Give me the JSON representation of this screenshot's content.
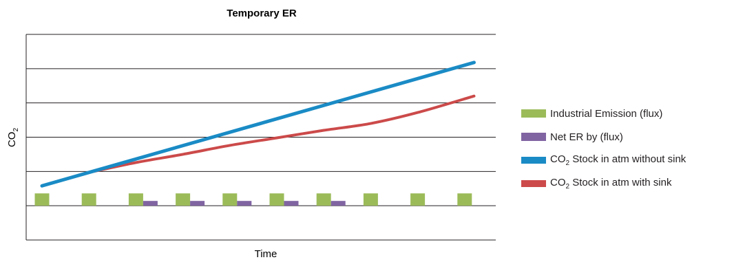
{
  "chart_data": {
    "type": "bar",
    "title": "Temporary ER",
    "xlabel": "Time",
    "ylabel": "CO2",
    "ylabel_main": "CO",
    "ylabel_sub": "2",
    "grid": true,
    "legend_position": "right",
    "x": [
      1,
      2,
      3,
      4,
      5,
      6,
      7,
      8,
      9,
      10
    ],
    "ylim": [
      -1,
      5
    ],
    "series": [
      {
        "name": "Industrial Emission (flux)",
        "type": "bar",
        "color": "#9bbb59",
        "values": [
          0.36,
          0.36,
          0.36,
          0.36,
          0.36,
          0.36,
          0.36,
          0.36,
          0.36,
          0.36
        ]
      },
      {
        "name": "Net ER by (flux)",
        "type": "bar",
        "color": "#8064a2",
        "values": [
          0,
          0,
          0.14,
          0.14,
          0.14,
          0.14,
          0.14,
          0,
          0,
          0
        ]
      },
      {
        "name": "CO2 Stock in atm without sink",
        "type": "line",
        "color": "#1a8bc5",
        "x": [
          1,
          10.2
        ],
        "values": [
          0.58,
          4.18
        ]
      },
      {
        "name": "CO2 Stock in atm with sink",
        "type": "line",
        "color": "#cc4a4a",
        "x": [
          2.1,
          3,
          4,
          5,
          6,
          7,
          8,
          9,
          10.2
        ],
        "values": [
          1.0,
          1.26,
          1.5,
          1.76,
          1.98,
          2.2,
          2.4,
          2.72,
          3.2
        ]
      }
    ]
  },
  "legend": [
    {
      "main": "Industrial Emission (flux)",
      "color": "#9bbb59",
      "kind": "bar"
    },
    {
      "main": "Net ER by (flux)",
      "color": "#8064a2",
      "kind": "bar"
    },
    {
      "pre": "CO",
      "sub": "2",
      "post": " Stock in atm without sink",
      "color": "#1a8bc5",
      "kind": "line"
    },
    {
      "pre": "CO",
      "sub": "2",
      "post": " Stock in atm with sink",
      "color": "#cc4a4a",
      "kind": "line"
    }
  ]
}
